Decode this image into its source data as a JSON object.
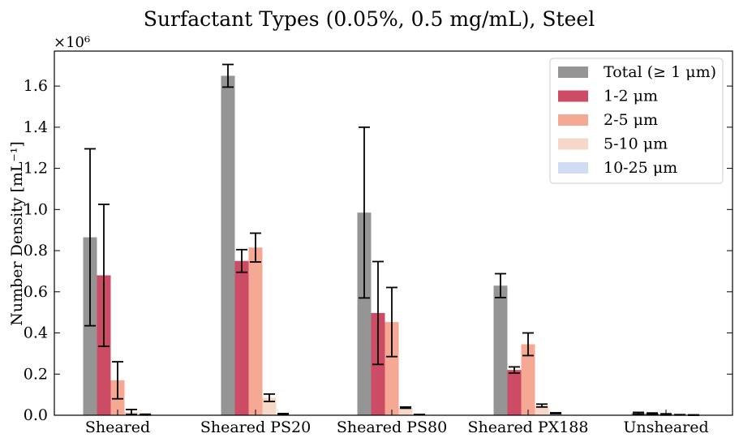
{
  "chart_data": {
    "type": "bar",
    "title": "Surfactant Types (0.05%, 0.5 mg/mL), Steel",
    "xlabel": "",
    "ylabel": "Number Density [mL⁻¹]",
    "y_multiplier_label": "×10⁶",
    "ylim": [
      0,
      1.77
    ],
    "yticks": [
      0.0,
      0.2,
      0.4,
      0.6,
      0.8,
      1.0,
      1.2,
      1.4,
      1.6
    ],
    "ytick_labels": [
      "0.0",
      "0.2",
      "0.4",
      "0.6",
      "0.8",
      "1.0",
      "1.2",
      "1.4",
      "1.6"
    ],
    "categories": [
      "Sheared",
      "Sheared PS20",
      "Sheared PS80",
      "Sheared PX188",
      "Unsheared"
    ],
    "legend_position": "top-right",
    "series": [
      {
        "name": "Total (≥ 1 μm)",
        "color": "#959595",
        "values": [
          0.865,
          1.65,
          0.985,
          0.63,
          0.01
        ],
        "errors": [
          0.43,
          0.055,
          0.415,
          0.058,
          0.004
        ]
      },
      {
        "name": "1-2 μm",
        "color": "#cc4c66",
        "values": [
          0.68,
          0.75,
          0.497,
          0.22,
          0.008
        ],
        "errors": [
          0.345,
          0.055,
          0.25,
          0.015,
          0.003
        ]
      },
      {
        "name": "2-5 μm",
        "color": "#f5a995",
        "values": [
          0.17,
          0.815,
          0.453,
          0.345,
          0.004
        ],
        "errors": [
          0.09,
          0.07,
          0.168,
          0.055,
          0.003
        ]
      },
      {
        "name": "5-10 μm",
        "color": "#f6d8c9",
        "values": [
          0.016,
          0.085,
          0.037,
          0.047,
          0.002
        ],
        "errors": [
          0.012,
          0.018,
          0.003,
          0.007,
          0.001
        ]
      },
      {
        "name": "10-25 μm",
        "color": "#cfdcf3",
        "values": [
          0.003,
          0.006,
          0.003,
          0.01,
          0.001
        ],
        "errors": [
          0.002,
          0.002,
          0.001,
          0.002,
          0.001
        ]
      }
    ]
  }
}
